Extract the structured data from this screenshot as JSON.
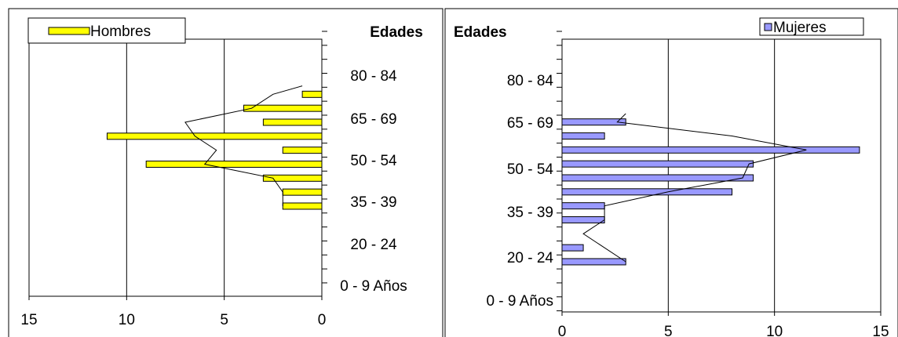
{
  "chart_data": [
    {
      "type": "bar",
      "orientation": "horizontal",
      "direction": "reversed",
      "legend": "Hombres",
      "legend_position": "top-left",
      "axis_title": "Edades",
      "bar_color": "#ffff00",
      "xlim": [
        0,
        15
      ],
      "x_ticks": [
        "15",
        "10",
        "5",
        "0"
      ],
      "grid": "vertical",
      "y_labels": [
        "80 - 84",
        "65 - 69",
        "50 - 54",
        "35 - 39",
        "20 - 24",
        "0  - 9 Años"
      ],
      "bars": [
        {
          "slot": 1,
          "value": 1
        },
        {
          "slot": 2,
          "value": 4
        },
        {
          "slot": 3,
          "value": 3
        },
        {
          "slot": 4,
          "value": 11
        },
        {
          "slot": 5,
          "value": 2
        },
        {
          "slot": 6,
          "value": 9
        },
        {
          "slot": 7,
          "value": 3
        },
        {
          "slot": 8,
          "value": 2
        },
        {
          "slot": 9,
          "value": 2
        }
      ],
      "line": [
        {
          "slot": 0.4,
          "value": 1
        },
        {
          "slot": 1,
          "value": 2.5
        },
        {
          "slot": 2,
          "value": 3.6
        },
        {
          "slot": 3,
          "value": 7
        },
        {
          "slot": 4,
          "value": 6.5
        },
        {
          "slot": 5,
          "value": 5.4
        },
        {
          "slot": 6,
          "value": 6
        },
        {
          "slot": 7,
          "value": 2.5
        },
        {
          "slot": 8,
          "value": 2
        },
        {
          "slot": 9,
          "value": 2
        }
      ]
    },
    {
      "type": "bar",
      "orientation": "horizontal",
      "legend": "Mujeres",
      "legend_position": "top-right",
      "axis_title": "Edades",
      "bar_color": "#9999ff",
      "xlim": [
        0,
        15
      ],
      "x_ticks": [
        "0",
        "5",
        "10",
        "15"
      ],
      "grid": "vertical",
      "y_labels": [
        "80 - 84",
        "65 - 69",
        "50 - 54",
        "35 - 39",
        "20 - 24",
        "0  - 9 Años"
      ],
      "bars": [
        {
          "slot": 2,
          "value": 3
        },
        {
          "slot": 3,
          "value": 2
        },
        {
          "slot": 4,
          "value": 14
        },
        {
          "slot": 5,
          "value": 9
        },
        {
          "slot": 6,
          "value": 9
        },
        {
          "slot": 7,
          "value": 8
        },
        {
          "slot": 8,
          "value": 2
        },
        {
          "slot": 9,
          "value": 2
        },
        {
          "slot": 11,
          "value": 1
        },
        {
          "slot": 12,
          "value": 3
        }
      ],
      "line": [
        {
          "slot": 1.4,
          "value": 3
        },
        {
          "slot": 2,
          "value": 2.6
        },
        {
          "slot": 3,
          "value": 8
        },
        {
          "slot": 4,
          "value": 11.5
        },
        {
          "slot": 5,
          "value": 8.8
        },
        {
          "slot": 6,
          "value": 8.5
        },
        {
          "slot": 7,
          "value": 5
        },
        {
          "slot": 8,
          "value": 2
        },
        {
          "slot": 9,
          "value": 2
        },
        {
          "slot": 10,
          "value": 1
        },
        {
          "slot": 12,
          "value": 3
        }
      ]
    }
  ]
}
